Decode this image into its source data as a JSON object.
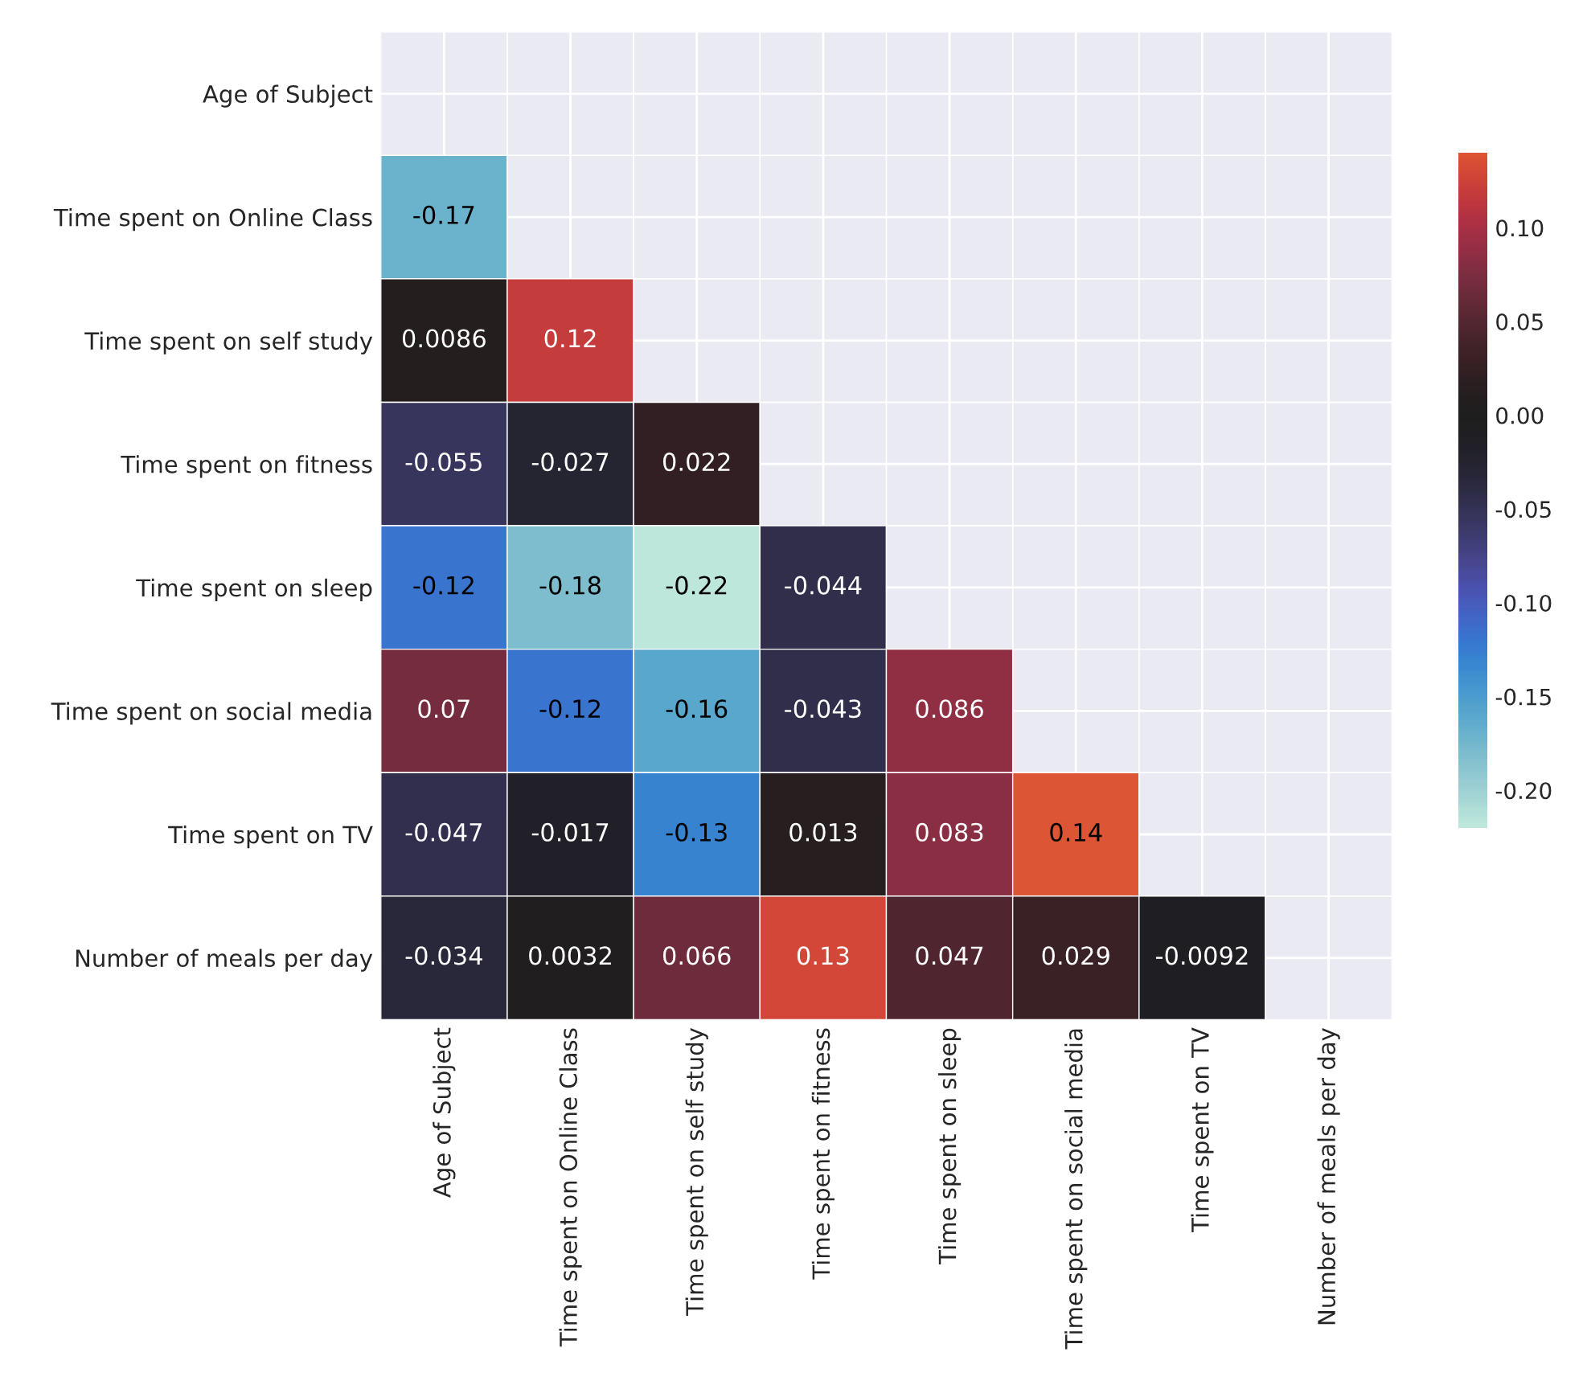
{
  "chart_data": {
    "type": "heatmap",
    "categories": [
      "Age of Subject",
      "Time spent on Online Class",
      "Time spent on self study",
      "Time spent on fitness",
      "Time spent on sleep",
      "Time spent on social media",
      "Time spent on TV",
      "Number of meals per day"
    ],
    "y_categories": [
      "Age of Subject",
      "Time spent on Online Class",
      "Time spent on self study",
      "Time spent on fitness",
      "Time spent on sleep",
      "Time spent on social media",
      "Time spent on TV",
      "Number of meals per day"
    ],
    "cells": [
      [
        null,
        null,
        null,
        null,
        null,
        null,
        null,
        null
      ],
      [
        -0.17,
        null,
        null,
        null,
        null,
        null,
        null,
        null
      ],
      [
        0.0086,
        0.12,
        null,
        null,
        null,
        null,
        null,
        null
      ],
      [
        -0.055,
        -0.027,
        0.022,
        null,
        null,
        null,
        null,
        null
      ],
      [
        -0.12,
        -0.18,
        -0.22,
        -0.044,
        null,
        null,
        null,
        null
      ],
      [
        0.07,
        -0.12,
        -0.16,
        -0.043,
        0.086,
        null,
        null,
        null
      ],
      [
        -0.047,
        -0.017,
        -0.13,
        0.013,
        0.083,
        0.14,
        null,
        null
      ],
      [
        -0.034,
        0.0032,
        0.066,
        0.13,
        0.047,
        0.029,
        -0.0092,
        null
      ]
    ],
    "clim": [
      -0.22,
      0.14
    ],
    "cticks": [
      {
        "value": -0.2,
        "label": "-0.20"
      },
      {
        "value": -0.15,
        "label": "-0.15"
      },
      {
        "value": -0.1,
        "label": "-0.10"
      },
      {
        "value": -0.05,
        "label": "-0.05"
      },
      {
        "value": 0.0,
        "label": "0.00"
      },
      {
        "value": 0.05,
        "label": "0.05"
      },
      {
        "value": 0.1,
        "label": "0.10"
      }
    ],
    "data_labels": true,
    "grid": true
  }
}
